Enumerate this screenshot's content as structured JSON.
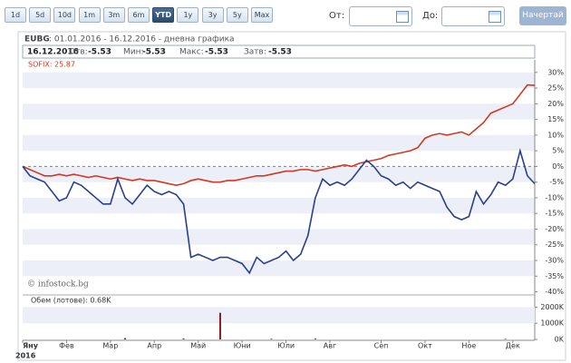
{
  "toolbar": {
    "buttons": [
      "1d",
      "5d",
      "10d",
      "1m",
      "3m",
      "6m",
      "YTD",
      "1y",
      "3y",
      "5y",
      "Max"
    ],
    "active": "YTD",
    "from_label": "От:",
    "to_label": "До:",
    "submit": "Начертай"
  },
  "chart_data": {
    "type": "line",
    "symbol": "EUBG",
    "title": ": 01.01.2016 - 16.12.2016 - дневна графика",
    "info": {
      "date": "16.12.2016",
      "open_label": "Отв:",
      "open": "-5.53",
      "low_label": "Мин:",
      "low": "-5.53",
      "high_label": "Макс:",
      "high": "-5.53",
      "close_label": "Затв:",
      "close": "-5.53"
    },
    "legend": "SOFIX: 25.87",
    "watermark": "© infostock.bg",
    "year": "2016",
    "categories": [
      "Яну",
      null,
      null,
      null,
      null,
      null,
      "Фев",
      null,
      null,
      null,
      null,
      null,
      "Мар",
      null,
      null,
      null,
      null,
      null,
      "Апр",
      null,
      null,
      null,
      null,
      null,
      "Май",
      null,
      null,
      null,
      null,
      null,
      "Юни",
      null,
      null,
      null,
      null,
      null,
      "Юли",
      null,
      null,
      null,
      null,
      null,
      "Авг",
      null,
      null,
      null,
      null,
      null,
      null,
      "Сеп",
      null,
      null,
      null,
      null,
      null,
      "Окт",
      null,
      null,
      null,
      null,
      null,
      "Ное",
      null,
      null,
      null,
      null,
      null,
      "Дек",
      null,
      null,
      null
    ],
    "series": [
      {
        "name": "EUBG",
        "color": "#2b3f8c",
        "values": [
          0,
          -3,
          -4,
          -5,
          -8,
          -11,
          -10,
          -5,
          -6,
          -8,
          -10,
          -12,
          -12,
          -4,
          -10,
          -12,
          -9,
          -6,
          -8,
          -9,
          -8,
          -9,
          -12,
          -29,
          -28,
          -29,
          -30,
          -29,
          -29,
          -30,
          -31,
          -34,
          -29,
          -31,
          -30,
          -29,
          -27,
          -30,
          -28,
          -22,
          -10,
          -4,
          -6,
          -5,
          -6,
          -4,
          -1,
          2,
          0,
          -3,
          -4,
          -6,
          -5,
          -7,
          -5,
          -6,
          -7,
          -8,
          -13,
          -16,
          -17,
          -16,
          -8,
          -12,
          -9,
          -5,
          -6,
          -4,
          5,
          -3,
          -5.53
        ]
      },
      {
        "name": "SOFIX",
        "color": "#d03a22",
        "values": [
          0,
          -1,
          -2,
          -3,
          -3,
          -2.5,
          -3,
          -2.5,
          -3,
          -3.5,
          -3,
          -3.5,
          -4,
          -3.5,
          -4,
          -4.5,
          -4,
          -4.5,
          -4.5,
          -5,
          -5.5,
          -6,
          -5.5,
          -4.5,
          -4,
          -4.5,
          -5,
          -5,
          -4.5,
          -4.5,
          -4,
          -3.5,
          -3,
          -3,
          -2.5,
          -2,
          -1.5,
          -1.5,
          -1,
          -1,
          -1.5,
          -1,
          -0.5,
          0,
          0.5,
          0,
          1,
          1.5,
          2,
          2.5,
          3.5,
          4,
          4.5,
          5,
          6,
          9,
          10,
          10.5,
          10,
          10.5,
          11,
          10,
          12,
          14,
          17,
          18,
          19,
          20,
          23,
          26,
          25.87
        ]
      }
    ],
    "ylim": [
      -41,
      34
    ],
    "yticks": [
      {
        "value": 30,
        "label": "30%"
      },
      {
        "value": 25,
        "label": "25%"
      },
      {
        "value": 20,
        "label": "20%"
      },
      {
        "value": 15,
        "label": "15%"
      },
      {
        "value": 10,
        "label": "10%"
      },
      {
        "value": 5,
        "label": "5%"
      },
      {
        "value": 0,
        "label": "0%"
      },
      {
        "value": -5,
        "label": "-5%"
      },
      {
        "value": -10,
        "label": "-10%"
      },
      {
        "value": -15,
        "label": "-15%"
      },
      {
        "value": -20,
        "label": "-20%"
      },
      {
        "value": -25,
        "label": "-25%"
      },
      {
        "value": -30,
        "label": "-30%"
      },
      {
        "value": -35,
        "label": "-35%"
      },
      {
        "value": -40,
        "label": "-40%"
      }
    ],
    "volume": {
      "label": "Обем (лотове): 0.68K",
      "color": "#8b1a1a",
      "values": [
        0,
        0,
        0,
        0,
        0,
        0,
        0,
        0,
        0,
        0,
        0,
        0,
        0,
        0,
        80,
        0,
        0,
        0,
        0,
        0,
        0,
        0,
        60,
        0,
        0,
        0,
        0,
        1650,
        0,
        0,
        0,
        0,
        0,
        0,
        40,
        0,
        0,
        0,
        0,
        0,
        50,
        0,
        0,
        0,
        0,
        0,
        0,
        0,
        0,
        0,
        0,
        0,
        0,
        0,
        0,
        0,
        0,
        0,
        0,
        0,
        0,
        0,
        0,
        0,
        0,
        0,
        30,
        0,
        0,
        0,
        0
      ],
      "ylim": [
        0,
        2700
      ],
      "yticks": [
        {
          "value": 2000,
          "label": "2000K"
        },
        {
          "value": 1000,
          "label": "1000K"
        },
        {
          "value": 0,
          "label": "0K"
        }
      ]
    }
  }
}
